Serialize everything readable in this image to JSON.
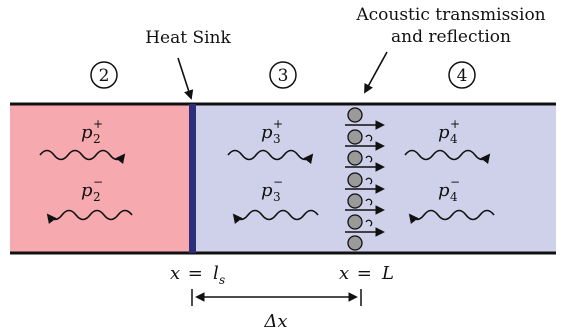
{
  "labels": {
    "heat_sink": "Heat Sink",
    "acoustic_line1": "Acoustic transmission",
    "acoustic_line2": "and reflection"
  },
  "regions": [
    {
      "id": "2",
      "number": "2",
      "fill": "#f6a9ae"
    },
    {
      "id": "3",
      "number": "3",
      "fill": "#cfd0ea"
    },
    {
      "id": "4",
      "number": "4",
      "fill": "#cfd0ea"
    }
  ],
  "waves": {
    "p2_plus": {
      "base": "p",
      "sub": "2",
      "sup": "+"
    },
    "p2_minus": {
      "base": "p",
      "sub": "2",
      "sup": "−"
    },
    "p3_plus": {
      "base": "p",
      "sub": "3",
      "sup": "+"
    },
    "p3_minus": {
      "base": "p",
      "sub": "3",
      "sup": "−"
    },
    "p4_plus": {
      "base": "p",
      "sub": "4",
      "sup": "+"
    },
    "p4_minus": {
      "base": "p",
      "sub": "4",
      "sup": "−"
    }
  },
  "positions": {
    "heat_sink_eq": {
      "lhs": "x",
      "eq": " = ",
      "rhs": "l",
      "rhs_sub": "s"
    },
    "interface_eq": {
      "lhs": "x",
      "eq": " = ",
      "rhs": "L"
    },
    "delta": "Δx"
  },
  "colors": {
    "hot_region": "#f6a9ae",
    "cold_region": "#cfd0ea",
    "heat_sink_bar": "#2b2f7a",
    "vortex_fill": "#9a9a9a",
    "line": "#111111"
  }
}
